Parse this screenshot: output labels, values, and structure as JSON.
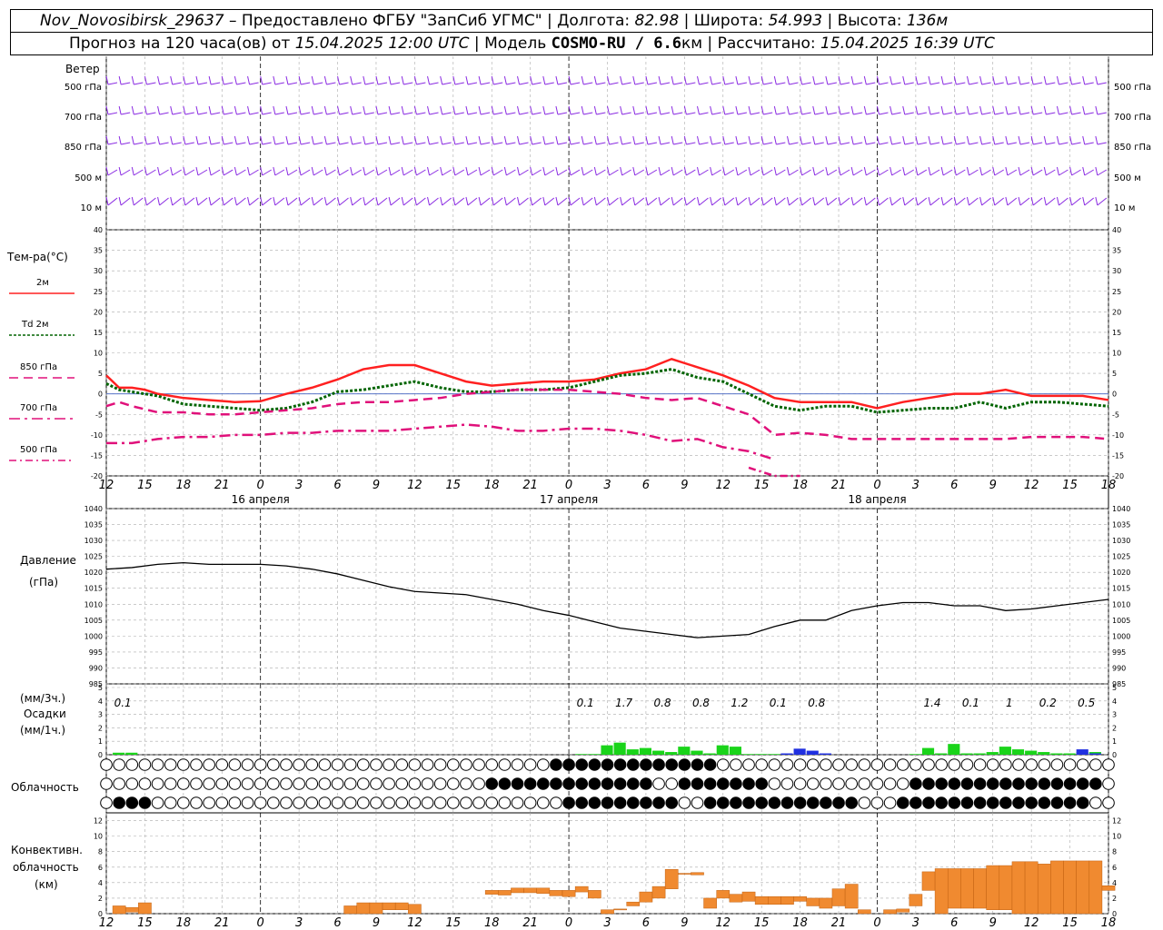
{
  "header": {
    "line1": [
      {
        "text": "Nov_Novosibirsk_29637",
        "italic": true
      },
      {
        "text": " – Предоставлено ФГБУ \"ЗапСиб УГМС\" | Долгота: ",
        "italic": false
      },
      {
        "text": "82.98",
        "italic": true
      },
      {
        "text": " | Широта: ",
        "italic": false
      },
      {
        "text": "54.993",
        "italic": true
      },
      {
        "text": " | Высота: ",
        "italic": false
      },
      {
        "text": "136м",
        "italic": true
      }
    ],
    "line2": [
      {
        "text": "Прогноз на 120 часа(ов) от ",
        "italic": false
      },
      {
        "text": "15.04.2025 12:00 UTC",
        "italic": true
      },
      {
        "text": "  | Модель ",
        "italic": false
      },
      {
        "text": "COSMO-RU / 6.6",
        "mono": true
      },
      {
        "text": "км | Рассчитано: ",
        "italic": false
      },
      {
        "text": "15.04.2025 16:39 UTC",
        "italic": true
      }
    ]
  },
  "wind_panel": {
    "title": "Ветер",
    "levels": [
      "500 гПа",
      "700 гПа",
      "850 гПа",
      "500 м",
      "10  м"
    ],
    "barb_color": "#8a2be2"
  },
  "temp_panel": {
    "title": "Тем-ра(°С)",
    "legend": [
      {
        "label": "2м",
        "color": "#ff2020",
        "style": "solid"
      },
      {
        "label": "Td 2м",
        "color": "#006400",
        "style": "dotted"
      },
      {
        "label": "850 гПа",
        "color": "#e0107a",
        "style": "dashed"
      },
      {
        "label": "700 гПа",
        "color": "#e0107a",
        "style": "dashdot"
      },
      {
        "label": "500 гПа",
        "color": "#e0107a",
        "style": "dashdot2"
      }
    ],
    "yticks": [
      "40",
      "35",
      "30",
      "25",
      "20",
      "15",
      "10",
      "5",
      "0",
      "-5",
      "-10",
      "-15",
      "-20"
    ]
  },
  "time_axis": {
    "hour_labels": [
      "12",
      "15",
      "18",
      "21",
      "0",
      "3",
      "6",
      "9",
      "12",
      "15",
      "18",
      "21",
      "0",
      "3",
      "6",
      "9",
      "12",
      "15",
      "18",
      "21",
      "0",
      "3",
      "6",
      "9",
      "12",
      "15",
      "18"
    ],
    "date_labels": [
      "16 апреля",
      "17 апреля",
      "18 апреля"
    ]
  },
  "pressure_panel": {
    "title": "Давление",
    "unit": "(гПа)",
    "yticks": [
      "1040",
      "1035",
      "1030",
      "1025",
      "1020",
      "1015",
      "1010",
      "1005",
      "1000",
      "995",
      "990",
      "985"
    ]
  },
  "precip_panel": {
    "title_lines": [
      "(мм/3ч.)",
      "Осадки",
      "(мм/1ч.)"
    ],
    "yticks": [
      "5",
      "4",
      "3",
      "2",
      "1",
      "0"
    ],
    "totals": [
      {
        "t": 1,
        "label": "0.1"
      },
      {
        "t": 37,
        "label": "0.1"
      },
      {
        "t": 40,
        "label": "1.7"
      },
      {
        "t": 43,
        "label": "0.8"
      },
      {
        "t": 46,
        "label": "0.8"
      },
      {
        "t": 49,
        "label": "1.2"
      },
      {
        "t": 52,
        "label": "0.1"
      },
      {
        "t": 55,
        "label": "0.8"
      },
      {
        "t": 64,
        "label": "1.4"
      },
      {
        "t": 67,
        "label": "0.1"
      },
      {
        "t": 70,
        "label": "1"
      },
      {
        "t": 73,
        "label": "0.2"
      },
      {
        "t": 76,
        "label": "0.5"
      }
    ]
  },
  "cloud_panel": {
    "title": "Облачность"
  },
  "conv_panel": {
    "title_lines": [
      "Конвективн.",
      "облачность",
      "(км)"
    ],
    "yticks": [
      "12",
      "10",
      "8",
      "6",
      "4",
      "2",
      "0"
    ],
    "bar_color": "#f08a30"
  },
  "chart_data": [
    {
      "type": "line",
      "title": "Тем-ра(°С)",
      "x_unit": "hours from 15.04.2025 12:00 UTC",
      "ylim": [
        -20,
        40
      ],
      "series": [
        {
          "name": "2м",
          "x": [
            0,
            1,
            2,
            3,
            4,
            6,
            8,
            10,
            12,
            14,
            16,
            18,
            20,
            22,
            24,
            26,
            28,
            30,
            32,
            34,
            36,
            38,
            40,
            42,
            44,
            46,
            48,
            50,
            52,
            54,
            56,
            58,
            60,
            62,
            64,
            66,
            68,
            70,
            72,
            74,
            76,
            78
          ],
          "values": [
            4.5,
            1.5,
            1.5,
            1,
            0,
            -1,
            -1.5,
            -2,
            -1.8,
            0,
            1.5,
            3.5,
            6,
            7,
            7,
            5,
            3,
            2,
            2.5,
            3,
            3,
            3.5,
            5,
            6,
            8.5,
            6.5,
            4.5,
            2,
            -1,
            -2,
            -2,
            -2,
            -3.5,
            -2,
            -1,
            0,
            0,
            1,
            -0.5,
            -0.5,
            -0.5,
            -1.5
          ]
        },
        {
          "name": "Td 2м",
          "x": [
            0,
            1,
            2,
            4,
            6,
            8,
            10,
            12,
            14,
            16,
            18,
            20,
            22,
            24,
            26,
            28,
            30,
            32,
            34,
            36,
            38,
            40,
            42,
            44,
            46,
            48,
            50,
            52,
            54,
            56,
            58,
            60,
            62,
            64,
            66,
            68,
            70,
            72,
            74,
            76,
            78
          ],
          "values": [
            2.5,
            1,
            0.5,
            -0.5,
            -2.5,
            -3,
            -3.5,
            -4,
            -3.5,
            -2,
            0.5,
            1,
            2,
            3,
            1.5,
            0.5,
            0.5,
            1,
            1,
            1.5,
            3,
            4.5,
            5,
            6,
            4,
            3,
            0,
            -3,
            -4,
            -3,
            -3,
            -4.5,
            -4,
            -3.5,
            -3.5,
            -2,
            -3.5,
            -2,
            -2,
            -2.5,
            -3
          ]
        },
        {
          "name": "850 гПа",
          "x": [
            0,
            1,
            2,
            4,
            6,
            8,
            10,
            12,
            14,
            16,
            18,
            20,
            22,
            24,
            26,
            28,
            30,
            32,
            34,
            36,
            38,
            40,
            42,
            44,
            46,
            48,
            50,
            52,
            54,
            56,
            58,
            60,
            62,
            64,
            66,
            68,
            70,
            72,
            74,
            76,
            78
          ],
          "values": [
            -3,
            -2,
            -3,
            -4.5,
            -4.5,
            -5,
            -5,
            -4.5,
            -4,
            -3.5,
            -2.5,
            -2,
            -2,
            -1.5,
            -1,
            0,
            0.5,
            1,
            1,
            1,
            0.5,
            0,
            -1,
            -1.5,
            -1,
            -3,
            -5,
            -10,
            -9.5,
            -10,
            -11,
            -11,
            -11,
            -11,
            -11,
            -11,
            -11,
            -10.5,
            -10.5,
            -10.5,
            -11
          ]
        },
        {
          "name": "700 гПа",
          "x": [
            0,
            2,
            4,
            6,
            8,
            10,
            12,
            14,
            16,
            18,
            20,
            22,
            24,
            26,
            28,
            30,
            32,
            34,
            36,
            38,
            40,
            42,
            44,
            46,
            48,
            50,
            52
          ],
          "values": [
            -12,
            -12,
            -11,
            -10.5,
            -10.5,
            -10,
            -10,
            -9.5,
            -9.5,
            -9,
            -9,
            -9,
            -8.5,
            -8,
            -7.5,
            -8,
            -9,
            -9,
            -8.5,
            -8.5,
            -9,
            -10,
            -11.5,
            -11,
            -13,
            -14,
            -16
          ]
        },
        {
          "name": "500 гПа",
          "x": [
            50,
            52,
            54
          ],
          "values": [
            -18,
            -20,
            -22
          ]
        }
      ]
    },
    {
      "type": "line",
      "title": "Давление",
      "ylabel": "(гПа)",
      "x_unit": "hours from 15.04.2025 12:00 UTC",
      "ylim": [
        985,
        1040
      ],
      "series": [
        {
          "name": "Давление",
          "x": [
            0,
            2,
            4,
            6,
            8,
            10,
            12,
            14,
            16,
            18,
            20,
            22,
            24,
            26,
            28,
            30,
            32,
            34,
            36,
            38,
            40,
            42,
            44,
            46,
            48,
            50,
            52,
            54,
            56,
            58,
            60,
            62,
            64,
            66,
            68,
            70,
            72,
            74,
            76,
            78
          ],
          "values": [
            1021,
            1021.5,
            1022.5,
            1023,
            1022.5,
            1022.5,
            1022.5,
            1022,
            1021,
            1019.5,
            1017.5,
            1015.5,
            1014,
            1013.5,
            1013,
            1011.5,
            1010,
            1008,
            1006.5,
            1004.5,
            1002.5,
            1001.5,
            1000.5,
            999.5,
            1000,
            1000.5,
            1003,
            1005,
            1005,
            1008,
            1009.5,
            1010.5,
            1010.5,
            1009.5,
            1009.5,
            1008,
            1008.5,
            1009.5,
            1010.5,
            1011.5
          ]
        }
      ]
    },
    {
      "type": "bar",
      "title": "Осадки",
      "ylabel": "(мм/1ч.)",
      "x_unit": "hours from 15.04.2025 12:00 UTC",
      "ylim": [
        0,
        5
      ],
      "series": [
        {
          "name": "rain",
          "color": "#1ad41a",
          "x": [
            1,
            2,
            37,
            38,
            39,
            40,
            41,
            42,
            43,
            44,
            45,
            46,
            47,
            48,
            49,
            50,
            51,
            52,
            63,
            64,
            65,
            66,
            67,
            68,
            69,
            70,
            71,
            72,
            73,
            74,
            75,
            76,
            77
          ],
          "values": [
            0.15,
            0.15,
            0.05,
            0.05,
            0.7,
            0.9,
            0.4,
            0.5,
            0.3,
            0.2,
            0.6,
            0.3,
            0.1,
            0.7,
            0.6,
            0.05,
            0.05,
            0.05,
            0.05,
            0.5,
            0.1,
            0.8,
            0.1,
            0.1,
            0.2,
            0.6,
            0.4,
            0.3,
            0.2,
            0.1,
            0.1,
            0.2,
            0.2
          ]
        },
        {
          "name": "snow",
          "color": "#2030e0",
          "x": [
            53,
            54,
            55,
            56,
            76,
            77
          ],
          "values": [
            0.1,
            0.45,
            0.3,
            0.1,
            0.4,
            0.1
          ]
        }
      ]
    },
    {
      "type": "bar",
      "title": "Конвективн. облачность",
      "ylabel": "(км)",
      "x_unit": "hours from 15.04.2025 12:00 UTC",
      "ylim": [
        0,
        13
      ],
      "series": [
        {
          "name": "base",
          "x": [
            1,
            2,
            3,
            19,
            20,
            21,
            22,
            23,
            24,
            30,
            31,
            32,
            33,
            34,
            35,
            36,
            37,
            38,
            39,
            40,
            41,
            42,
            43,
            44,
            45,
            46,
            47,
            48,
            49,
            50,
            51,
            52,
            53,
            54,
            55,
            56,
            57,
            58,
            59,
            61,
            62,
            63,
            64,
            65,
            66,
            67,
            68,
            69,
            70,
            71,
            72,
            73,
            74,
            75,
            76,
            77,
            78
          ],
          "values": [
            0,
            0.2,
            0,
            0,
            0,
            0,
            0.5,
            0.5,
            0,
            2.5,
            2.4,
            2.7,
            2.7,
            2.6,
            2.3,
            2.2,
            2.8,
            2,
            0,
            0.5,
            1,
            1.5,
            2,
            3.2,
            5.2,
            5,
            0.7,
            2,
            1.5,
            1.6,
            1.2,
            1.2,
            1.2,
            1.6,
            1,
            0.7,
            1,
            0.7,
            0,
            0,
            0.2,
            1,
            3,
            0,
            0.7,
            0.7,
            0.7,
            0.5,
            0.5,
            0,
            0,
            0,
            0,
            0,
            0,
            0,
            3
          ]
        },
        {
          "name": "top",
          "x": [
            1,
            2,
            3,
            19,
            20,
            21,
            22,
            23,
            24,
            30,
            31,
            32,
            33,
            34,
            35,
            36,
            37,
            38,
            39,
            40,
            41,
            42,
            43,
            44,
            45,
            46,
            47,
            48,
            49,
            50,
            51,
            52,
            53,
            54,
            55,
            56,
            57,
            58,
            59,
            61,
            62,
            63,
            64,
            65,
            66,
            67,
            68,
            69,
            70,
            71,
            72,
            73,
            74,
            75,
            76,
            77,
            78
          ],
          "values": [
            1,
            0.8,
            1.4,
            1,
            1.4,
            1.4,
            1.4,
            1.4,
            1.2,
            3,
            3,
            3.3,
            3.3,
            3.3,
            3,
            3,
            3.5,
            3,
            0.5,
            0.6,
            1.5,
            2.8,
            3.5,
            5.7,
            5.2,
            5.3,
            2,
            3,
            2.5,
            2.8,
            2.2,
            2.2,
            2.2,
            2.2,
            2,
            2,
            3.2,
            3.8,
            0.5,
            0.5,
            0.6,
            2.5,
            5.4,
            5.8,
            5.8,
            5.8,
            5.8,
            6.2,
            6.2,
            6.7,
            6.7,
            6.4,
            6.8,
            6.8,
            6.8,
            6.8,
            3.6
          ]
        }
      ]
    }
  ]
}
